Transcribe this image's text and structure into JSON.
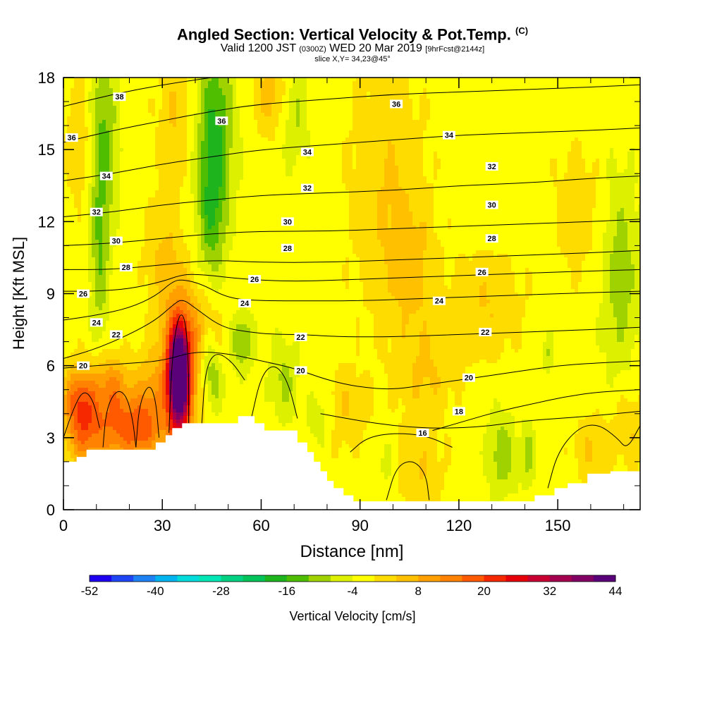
{
  "header": {
    "title": "Angled Section: Vertical Velocity & Pot.Temp.",
    "title_mark": "(C)",
    "valid_prefix": "Valid 1200 JST",
    "valid_utc": "(0300Z)",
    "valid_date": "WED 20 Mar 2019",
    "forecast": "[9hrFcst@2144z]",
    "slice": "slice X,Y= 34,23@45°"
  },
  "chart_data": {
    "type": "heatmap",
    "xlabel": "Distance [nm]",
    "ylabel": "Height [Kft MSL]",
    "xlim": [
      0,
      175
    ],
    "ylim": [
      0,
      18
    ],
    "xticks": [
      0,
      30,
      60,
      90,
      120,
      150
    ],
    "yticks": [
      0,
      3,
      6,
      9,
      12,
      15,
      18
    ],
    "colorbar": {
      "label": "Vertical Velocity [cm/s]",
      "tick_labels": [
        -52,
        -40,
        -28,
        -16,
        -4,
        8,
        20,
        32,
        44
      ],
      "colors": [
        "#1e00f0",
        "#1e46f5",
        "#1e82f5",
        "#00b4f0",
        "#00dcdc",
        "#00e6b4",
        "#00d282",
        "#00c35a",
        "#1eb41e",
        "#50be00",
        "#a0d200",
        "#dcf000",
        "#ffff00",
        "#ffdc00",
        "#ffc000",
        "#ffa000",
        "#ff8200",
        "#ff5a00",
        "#f52800",
        "#e6000a",
        "#c80032",
        "#a50050",
        "#820064",
        "#5a0078"
      ],
      "bin_start": -52,
      "bin_step": 4
    },
    "terrain": [
      [
        0,
        2.0
      ],
      [
        4,
        2.0
      ],
      [
        4,
        2.2
      ],
      [
        7,
        2.2
      ],
      [
        7,
        2.5
      ],
      [
        28,
        2.5
      ],
      [
        28,
        2.8
      ],
      [
        31,
        2.8
      ],
      [
        31,
        3.1
      ],
      [
        33,
        3.1
      ],
      [
        33,
        3.4
      ],
      [
        36,
        3.4
      ],
      [
        36,
        3.6
      ],
      [
        53,
        3.6
      ],
      [
        53,
        3.9
      ],
      [
        58,
        3.9
      ],
      [
        58,
        3.6
      ],
      [
        61,
        3.6
      ],
      [
        61,
        3.3
      ],
      [
        71,
        3.3
      ],
      [
        71,
        2.8
      ],
      [
        74,
        2.8
      ],
      [
        74,
        2.4
      ],
      [
        76,
        2.4
      ],
      [
        76,
        2.0
      ],
      [
        78,
        2.0
      ],
      [
        78,
        1.6
      ],
      [
        80,
        1.6
      ],
      [
        80,
        1.2
      ],
      [
        82,
        1.2
      ],
      [
        82,
        0.9
      ],
      [
        85,
        0.9
      ],
      [
        85,
        0.6
      ],
      [
        88,
        0.6
      ],
      [
        88,
        0.35
      ],
      [
        143,
        0.35
      ],
      [
        143,
        0.6
      ],
      [
        149,
        0.6
      ],
      [
        149,
        0.9
      ],
      [
        153,
        0.9
      ],
      [
        153,
        1.1
      ],
      [
        159,
        1.1
      ],
      [
        159,
        1.5
      ],
      [
        166,
        1.5
      ],
      [
        166,
        1.6
      ],
      [
        175,
        1.6
      ]
    ],
    "background_w": -2,
    "w_features": [
      {
        "x": 35,
        "z": 5.6,
        "sx": 2.0,
        "sz": 1.3,
        "w": 48
      },
      {
        "x": 35,
        "z": 5.2,
        "sx": 4.0,
        "sz": 2.6,
        "w": 22
      },
      {
        "x": 6,
        "z": 3.6,
        "sx": 4,
        "sz": 1.3,
        "w": 18
      },
      {
        "x": 16,
        "z": 3.6,
        "sx": 5,
        "sz": 1.3,
        "w": 16
      },
      {
        "x": 24,
        "z": 3.3,
        "sx": 4,
        "sz": 0.9,
        "w": 14
      },
      {
        "x": 4,
        "z": 4.8,
        "sx": 3,
        "sz": 0.9,
        "w": 9
      },
      {
        "x": 14,
        "z": 5.4,
        "sx": 4,
        "sz": 0.8,
        "w": 8
      },
      {
        "x": 26,
        "z": 5.0,
        "sx": 3,
        "sz": 1.2,
        "w": 8
      },
      {
        "x": 42,
        "z": 7.5,
        "sx": 5,
        "sz": 1.2,
        "w": 7
      },
      {
        "x": 30,
        "z": 10.6,
        "sx": 4,
        "sz": 1.6,
        "w": 6
      },
      {
        "x": 5,
        "z": 15.5,
        "sx": 3,
        "sz": 2.0,
        "w": 6
      },
      {
        "x": 34,
        "z": 16.5,
        "sx": 4,
        "sz": 2.0,
        "w": 6
      },
      {
        "x": 63,
        "z": 17.3,
        "sx": 4,
        "sz": 1.2,
        "w": 8
      },
      {
        "x": 98,
        "z": 13.5,
        "sx": 8,
        "sz": 4.0,
        "w": 6
      },
      {
        "x": 106,
        "z": 10.0,
        "sx": 5,
        "sz": 2.0,
        "w": 6
      },
      {
        "x": 128,
        "z": 8.5,
        "sx": 8,
        "sz": 1.6,
        "w": 6
      },
      {
        "x": 110,
        "z": 5.5,
        "sx": 6,
        "sz": 1.4,
        "w": 6
      },
      {
        "x": 108,
        "z": 1.5,
        "sx": 5,
        "sz": 1.2,
        "w": 6
      },
      {
        "x": 85,
        "z": 4.2,
        "sx": 5,
        "sz": 1.2,
        "w": 6
      },
      {
        "x": 172,
        "z": 3.4,
        "sx": 4,
        "sz": 1.2,
        "w": 6
      },
      {
        "x": 160,
        "z": 2.5,
        "sx": 4,
        "sz": 1.0,
        "w": 6
      },
      {
        "x": 156,
        "z": 12.5,
        "sx": 5,
        "sz": 2.0,
        "w": 5
      },
      {
        "x": 12,
        "z": 15.5,
        "sx": 3,
        "sz": 2.5,
        "w": -11
      },
      {
        "x": 11,
        "z": 10.5,
        "sx": 2,
        "sz": 2.5,
        "w": -9
      },
      {
        "x": 46,
        "z": 16.0,
        "sx": 4,
        "sz": 2.5,
        "w": -14
      },
      {
        "x": 45,
        "z": 12.2,
        "sx": 3,
        "sz": 2.0,
        "w": -11
      },
      {
        "x": 70,
        "z": 16.5,
        "sx": 3,
        "sz": 1.5,
        "w": -7
      },
      {
        "x": 54,
        "z": 7.0,
        "sx": 2.5,
        "sz": 0.8,
        "w": -11
      },
      {
        "x": 44,
        "z": 6.3,
        "sx": 2,
        "sz": 1.0,
        "w": -8
      },
      {
        "x": 46,
        "z": 5.2,
        "sx": 2,
        "sz": 0.8,
        "w": -6
      },
      {
        "x": 67,
        "z": 5.4,
        "sx": 3,
        "sz": 1.2,
        "w": -7
      },
      {
        "x": 78,
        "z": 3.8,
        "sx": 3,
        "sz": 0.8,
        "w": -6
      },
      {
        "x": 133,
        "z": 2.3,
        "sx": 3,
        "sz": 1.2,
        "w": -9
      },
      {
        "x": 141,
        "z": 2.3,
        "sx": 1.5,
        "sz": 1.0,
        "w": -7
      },
      {
        "x": 98,
        "z": 2.0,
        "sx": 1.5,
        "sz": 0.7,
        "w": -5
      },
      {
        "x": 169,
        "z": 9.8,
        "sx": 4,
        "sz": 3.0,
        "w": -8
      },
      {
        "x": 147,
        "z": 6.5,
        "sx": 1,
        "sz": 0.6,
        "w": -6
      }
    ],
    "contour_bands": [
      {
        "z": 5.1,
        "x0": 0,
        "x1": 9,
        "gap": [
          5,
          8
        ]
      },
      {
        "z": 5.0,
        "x0": 8,
        "x1": 21,
        "gap": [
          20,
          28
        ]
      },
      {
        "z": 5.2,
        "x0": 21,
        "x1": 27
      },
      {
        "z": 4.6,
        "x0": 63,
        "x1": 72,
        "gap": [
          68,
          74
        ]
      }
    ],
    "isentropes": [
      {
        "theta": 16,
        "pts": [
          [
            112,
            3.3
          ],
          [
            122,
            3.7
          ],
          [
            132,
            4.1
          ],
          [
            142,
            4.4
          ],
          [
            152,
            4.7
          ],
          [
            162,
            4.9
          ],
          [
            175,
            5.0
          ]
        ]
      },
      {
        "theta": 18,
        "pts": [
          [
            78,
            4.0
          ],
          [
            90,
            3.7
          ],
          [
            100,
            3.5
          ],
          [
            110,
            3.4
          ],
          [
            120,
            3.4
          ],
          [
            130,
            3.5
          ],
          [
            140,
            3.7
          ],
          [
            150,
            3.8
          ],
          [
            160,
            3.9
          ],
          [
            175,
            4.1
          ]
        ]
      },
      {
        "theta": 20,
        "pts": [
          [
            0,
            5.9
          ],
          [
            10,
            6.0
          ],
          [
            20,
            6.1
          ],
          [
            30,
            6.2
          ],
          [
            40,
            6.6
          ],
          [
            50,
            6.5
          ],
          [
            60,
            6.2
          ],
          [
            70,
            5.9
          ],
          [
            80,
            5.4
          ],
          [
            90,
            5.1
          ],
          [
            100,
            5.0
          ],
          [
            110,
            5.2
          ],
          [
            120,
            5.4
          ],
          [
            130,
            5.6
          ],
          [
            140,
            5.8
          ],
          [
            150,
            6.0
          ],
          [
            160,
            6.1
          ],
          [
            175,
            6.2
          ]
        ]
      },
      {
        "theta": 22,
        "pts": [
          [
            0,
            6.3
          ],
          [
            10,
            6.7
          ],
          [
            20,
            7.3
          ],
          [
            28,
            7.9
          ],
          [
            33,
            8.5
          ],
          [
            36,
            8.8
          ],
          [
            40,
            8.4
          ],
          [
            48,
            7.6
          ],
          [
            56,
            7.4
          ],
          [
            64,
            7.3
          ],
          [
            72,
            7.3
          ],
          [
            84,
            7.2
          ],
          [
            100,
            7.2
          ],
          [
            120,
            7.3
          ],
          [
            140,
            7.4
          ],
          [
            160,
            7.5
          ],
          [
            175,
            7.6
          ]
        ]
      },
      {
        "theta": 24,
        "pts": [
          [
            0,
            7.9
          ],
          [
            10,
            8.1
          ],
          [
            20,
            8.4
          ],
          [
            28,
            8.9
          ],
          [
            33,
            9.5
          ],
          [
            36,
            9.6
          ],
          [
            42,
            9.4
          ],
          [
            50,
            8.8
          ],
          [
            60,
            8.7
          ],
          [
            75,
            8.7
          ],
          [
            90,
            8.7
          ],
          [
            110,
            8.8
          ],
          [
            130,
            8.9
          ],
          [
            150,
            9.0
          ],
          [
            175,
            9.1
          ]
        ]
      },
      {
        "theta": 26,
        "pts": [
          [
            0,
            9.1
          ],
          [
            10,
            9.1
          ],
          [
            20,
            9.2
          ],
          [
            30,
            9.5
          ],
          [
            36,
            9.8
          ],
          [
            42,
            9.8
          ],
          [
            55,
            9.6
          ],
          [
            70,
            9.5
          ],
          [
            90,
            9.6
          ],
          [
            110,
            9.7
          ],
          [
            130,
            9.8
          ],
          [
            150,
            9.9
          ],
          [
            175,
            10.0
          ]
        ]
      },
      {
        "theta": 28,
        "pts": [
          [
            0,
            10.0
          ],
          [
            15,
            10.0
          ],
          [
            30,
            10.2
          ],
          [
            45,
            10.4
          ],
          [
            60,
            10.3
          ],
          [
            80,
            10.3
          ],
          [
            100,
            10.4
          ],
          [
            120,
            10.5
          ],
          [
            140,
            10.6
          ],
          [
            160,
            10.7
          ],
          [
            175,
            10.8
          ]
        ]
      },
      {
        "theta": 30,
        "pts": [
          [
            0,
            11.0
          ],
          [
            15,
            11.1
          ],
          [
            30,
            11.3
          ],
          [
            45,
            11.5
          ],
          [
            60,
            11.6
          ],
          [
            80,
            11.6
          ],
          [
            100,
            11.7
          ],
          [
            120,
            11.8
          ],
          [
            140,
            11.9
          ],
          [
            160,
            12.0
          ],
          [
            175,
            12.1
          ]
        ]
      },
      {
        "theta": 32,
        "pts": [
          [
            0,
            12.2
          ],
          [
            15,
            12.4
          ],
          [
            30,
            12.7
          ],
          [
            45,
            12.9
          ],
          [
            60,
            13.1
          ],
          [
            80,
            13.2
          ],
          [
            100,
            13.3
          ],
          [
            120,
            13.5
          ],
          [
            140,
            13.6
          ],
          [
            160,
            13.8
          ],
          [
            175,
            13.9
          ]
        ]
      },
      {
        "theta": 34,
        "pts": [
          [
            0,
            13.7
          ],
          [
            15,
            14.0
          ],
          [
            30,
            14.4
          ],
          [
            45,
            14.7
          ],
          [
            60,
            15.0
          ],
          [
            80,
            15.2
          ],
          [
            100,
            15.4
          ],
          [
            120,
            15.6
          ],
          [
            140,
            15.7
          ],
          [
            160,
            15.8
          ],
          [
            175,
            15.9
          ]
        ]
      },
      {
        "theta": 36,
        "pts": [
          [
            0,
            15.3
          ],
          [
            15,
            15.8
          ],
          [
            30,
            16.2
          ],
          [
            45,
            16.6
          ],
          [
            60,
            16.9
          ],
          [
            80,
            17.1
          ],
          [
            100,
            17.3
          ],
          [
            120,
            17.4
          ],
          [
            140,
            17.5
          ],
          [
            160,
            17.6
          ],
          [
            175,
            17.7
          ]
        ]
      },
      {
        "theta": 38,
        "pts": [
          [
            0,
            16.8
          ],
          [
            15,
            17.3
          ],
          [
            30,
            17.7
          ],
          [
            45,
            18.0
          ]
        ]
      }
    ],
    "isentrope_labels": [
      {
        "text": "38",
        "x": 17,
        "z": 17.2
      },
      {
        "text": "36",
        "x": 2.5,
        "z": 15.5
      },
      {
        "text": "36",
        "x": 48,
        "z": 16.2
      },
      {
        "text": "36",
        "x": 101,
        "z": 16.9
      },
      {
        "text": "34",
        "x": 13,
        "z": 13.9
      },
      {
        "text": "34",
        "x": 74,
        "z": 14.9
      },
      {
        "text": "34",
        "x": 117,
        "z": 15.6
      },
      {
        "text": "32",
        "x": 10,
        "z": 12.4
      },
      {
        "text": "32",
        "x": 74,
        "z": 13.4
      },
      {
        "text": "32",
        "x": 130,
        "z": 14.3
      },
      {
        "text": "30",
        "x": 16,
        "z": 11.2
      },
      {
        "text": "30",
        "x": 68,
        "z": 12.0
      },
      {
        "text": "30",
        "x": 130,
        "z": 12.7
      },
      {
        "text": "28",
        "x": 19,
        "z": 10.1
      },
      {
        "text": "28",
        "x": 68,
        "z": 10.9
      },
      {
        "text": "28",
        "x": 130,
        "z": 11.3
      },
      {
        "text": "26",
        "x": 6,
        "z": 9.0
      },
      {
        "text": "26",
        "x": 58,
        "z": 9.6
      },
      {
        "text": "26",
        "x": 127,
        "z": 9.9
      },
      {
        "text": "24",
        "x": 10,
        "z": 7.8
      },
      {
        "text": "24",
        "x": 55,
        "z": 8.6
      },
      {
        "text": "24",
        "x": 114,
        "z": 8.7
      },
      {
        "text": "22",
        "x": 16,
        "z": 7.3
      },
      {
        "text": "22",
        "x": 72,
        "z": 7.2
      },
      {
        "text": "22",
        "x": 128,
        "z": 7.4
      },
      {
        "text": "20",
        "x": 6,
        "z": 6.0
      },
      {
        "text": "20",
        "x": 72,
        "z": 5.8
      },
      {
        "text": "20",
        "x": 123,
        "z": 5.5
      },
      {
        "text": "18",
        "x": 120,
        "z": 4.1
      },
      {
        "text": "16",
        "x": 109,
        "z": 3.2
      }
    ]
  }
}
